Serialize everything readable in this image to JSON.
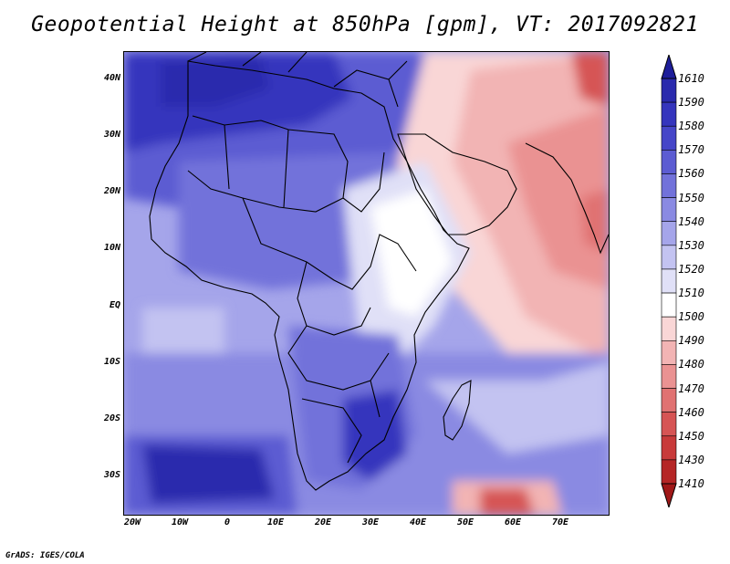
{
  "title": "Geopotential Height at 850hPa [gpm], VT: 2017092821",
  "footer": "GrADS: IGES/COLA",
  "axes": {
    "lat_labels": [
      "40N",
      "30N",
      "20N",
      "10N",
      "EQ",
      "10S",
      "20S",
      "30S"
    ],
    "lon_labels": [
      "20W",
      "10W",
      "0",
      "10E",
      "20E",
      "30E",
      "40E",
      "50E",
      "60E",
      "70E"
    ]
  },
  "colorbar": {
    "levels": [
      "1610",
      "1590",
      "1580",
      "1570",
      "1560",
      "1550",
      "1540",
      "1530",
      "1520",
      "1510",
      "1500",
      "1490",
      "1480",
      "1470",
      "1460",
      "1450",
      "1430",
      "1410"
    ],
    "colors": [
      "#1e1e9a",
      "#2a2aad",
      "#3535bd",
      "#4646c8",
      "#5c5cd2",
      "#7272da",
      "#8a8ae2",
      "#a5a5ea",
      "#c3c3f1",
      "#e0e0f7",
      "#ffffff",
      "#f9d6d6",
      "#f2b4b4",
      "#ea9292",
      "#e07272",
      "#d65454",
      "#c83a3a",
      "#b52626",
      "#a01818"
    ]
  },
  "icons": {
    "top": "arrow-up-icon",
    "bottom": "arrow-down-icon"
  }
}
